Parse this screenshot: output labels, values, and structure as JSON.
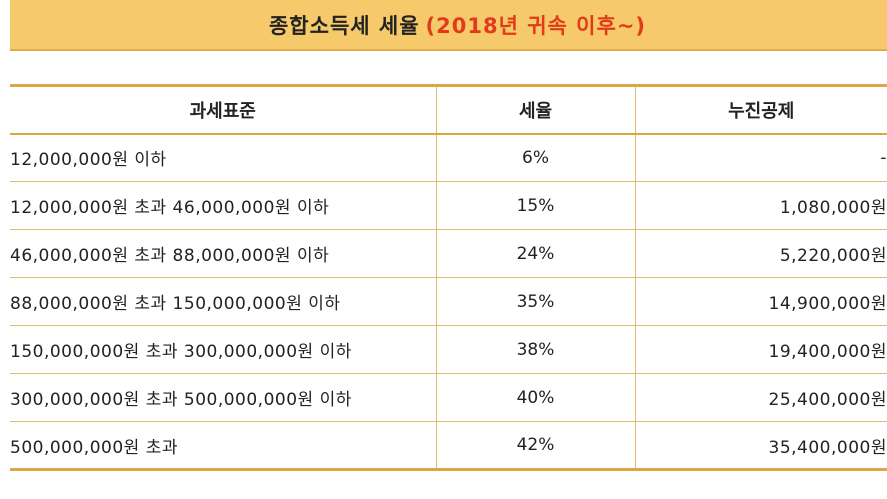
{
  "title": {
    "main": "종합소득세 세율",
    "sub": "(2018년 귀속 이후~)"
  },
  "table": {
    "headers": {
      "bracket": "과세표준",
      "rate": "세율",
      "deduction": "누진공제"
    },
    "rows": [
      {
        "bracket": "12,000,000원 이하",
        "rate": "6%",
        "deduction": "-"
      },
      {
        "bracket": "12,000,000원 초과 46,000,000원 이하",
        "rate": "15%",
        "deduction": "1,080,000원"
      },
      {
        "bracket": "46,000,000원 초과 88,000,000원 이하",
        "rate": "24%",
        "deduction": "5,220,000원"
      },
      {
        "bracket": "88,000,000원 초과 150,000,000원 이하",
        "rate": "35%",
        "deduction": "14,900,000원"
      },
      {
        "bracket": "150,000,000원 초과 300,000,000원 이하",
        "rate": "38%",
        "deduction": "19,400,000원"
      },
      {
        "bracket": "300,000,000원 초과 500,000,000원 이하",
        "rate": "40%",
        "deduction": "25,400,000원"
      },
      {
        "bracket": "500,000,000원 초과",
        "rate": "42%",
        "deduction": "35,400,000원"
      }
    ]
  },
  "colors": {
    "banner_bg": "#f6c96a",
    "title_accent": "#e23a1c",
    "table_border": "#e3ba6a"
  }
}
